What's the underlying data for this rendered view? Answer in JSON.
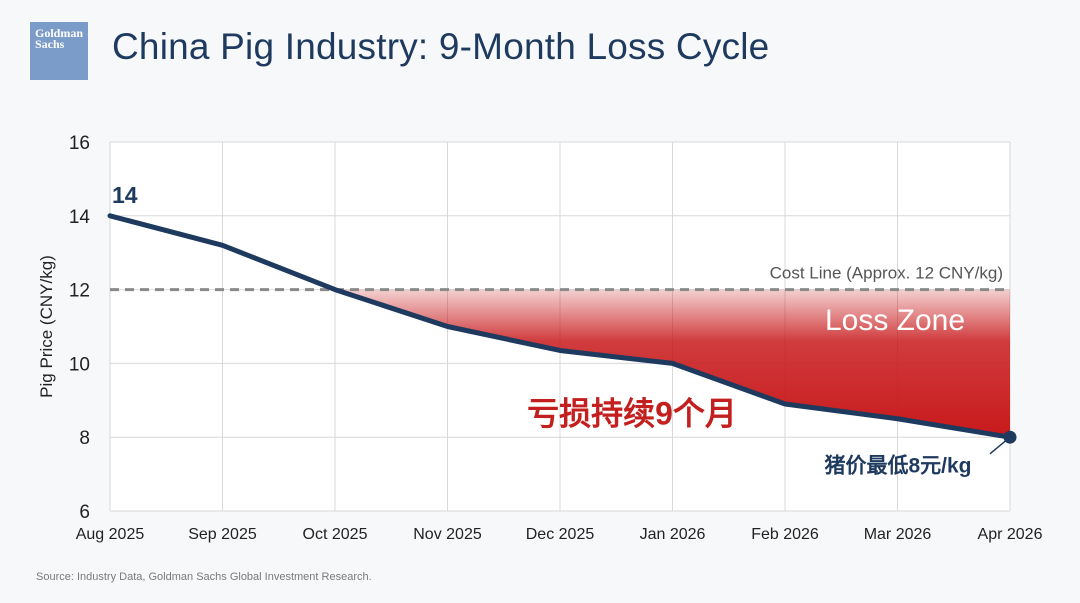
{
  "header": {
    "logo_line1": "Goldman",
    "logo_line2": "Sachs",
    "title": "China Pig Industry: 9-Month Loss Cycle"
  },
  "footer": {
    "source": "Source: Industry Data, Goldman Sachs Global Investment Research."
  },
  "colors": {
    "line": "#1f3a5f",
    "loss_fill": "#c8191b",
    "cost_line": "#8a8a8a",
    "title": "#1f3a5f",
    "annotation_red": "#c41f1f"
  },
  "chart_data": {
    "type": "line",
    "title": "China Pig Industry: 9-Month Loss Cycle",
    "ylabel": "Pig Price (CNY/kg)",
    "xlabel": "",
    "ylim": [
      6,
      16
    ],
    "yticks": [
      6,
      8,
      10,
      12,
      14,
      16
    ],
    "grid": true,
    "categories": [
      "Aug 2025",
      "Sep 2025",
      "Oct 2025",
      "Nov 2025",
      "Dec 2025",
      "Jan 2026",
      "Feb 2026",
      "Mar 2026",
      "Apr 2026"
    ],
    "series": [
      {
        "values": [
          14.0,
          13.2,
          12.0,
          11.0,
          10.35,
          10.0,
          8.9,
          8.5,
          8.0
        ]
      }
    ],
    "cost_line": {
      "value": 12,
      "label": "Cost Line (Approx. 12 CNY/kg)"
    },
    "loss_zone_label": "Loss Zone",
    "annotations": {
      "start_value_label": "14",
      "duration_label": "亏损持续9个月",
      "low_label": "猪价最低8元/kg"
    }
  }
}
